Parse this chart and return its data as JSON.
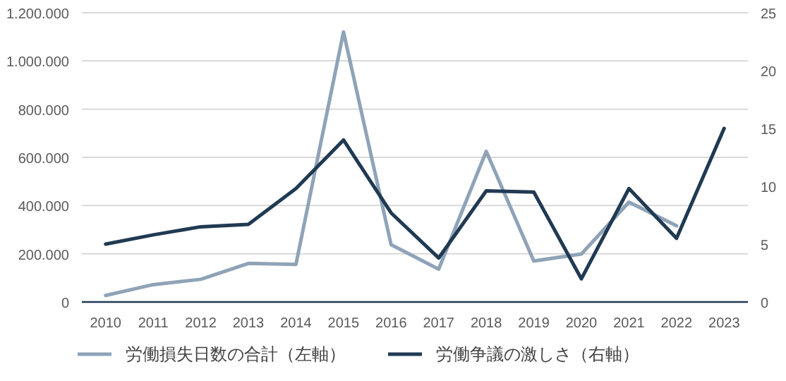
{
  "chart_data": {
    "type": "line",
    "categories": [
      "2010",
      "2011",
      "2012",
      "2013",
      "2014",
      "2015",
      "2016",
      "2017",
      "2018",
      "2019",
      "2020",
      "2021",
      "2022",
      "2023"
    ],
    "series": [
      {
        "name": "労働損失日数の合計（左軸）",
        "color": "#8fa3b8",
        "axis": "y",
        "values": [
          27000,
          72000,
          94000,
          160000,
          156000,
          1120000,
          238000,
          136000,
          625000,
          170000,
          199000,
          414000,
          316000,
          null
        ]
      },
      {
        "name": "労働争議の激しさ（右軸）",
        "color": "#203a52",
        "axis": "y2",
        "values": [
          5.0,
          5.8,
          6.5,
          6.7,
          9.8,
          14.0,
          7.7,
          3.8,
          9.6,
          9.5,
          2.0,
          9.8,
          5.5,
          15.0
        ]
      }
    ],
    "ylim": [
      0,
      1200000
    ],
    "yticks": [
      0,
      {
        "value": 200000,
        "label": "200.000"
      },
      {
        "value": 400000,
        "label": "400.000"
      },
      {
        "value": 600000,
        "label": "600.000"
      },
      {
        "value": 800000,
        "label": "800.000"
      },
      {
        "value": 1000000,
        "label": "1.000.000"
      },
      {
        "value": 1200000,
        "label": "1.200.000"
      }
    ],
    "y2lim": [
      0,
      25
    ],
    "y2ticks": [
      0,
      5,
      10,
      15,
      20,
      25
    ],
    "grid": "y",
    "legend": "bottom"
  }
}
